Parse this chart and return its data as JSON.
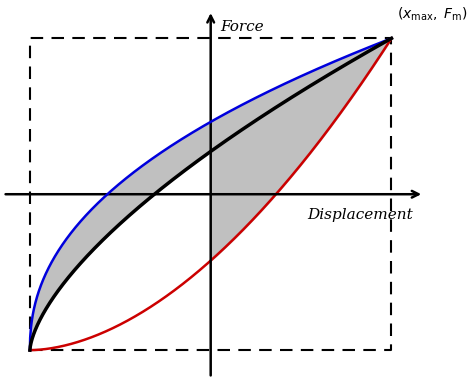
{
  "xlabel": "Displacement",
  "ylabel": "Force",
  "bg_color": "#ffffff",
  "gray_fill": "#c0c0c0",
  "blue_color": "#0000dd",
  "red_color": "#cc0000",
  "black_color": "#000000",
  "dashed_color": "#000000",
  "xmax": 1.0,
  "ymax": 1.0,
  "annotation_text": "(x_{max}, F_{m})"
}
